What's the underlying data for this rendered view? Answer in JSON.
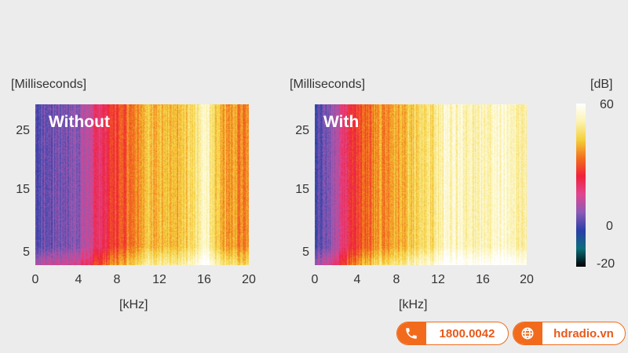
{
  "chart_data": [
    {
      "type": "heatmap",
      "title": "Without",
      "xlabel": "[kHz]",
      "ylabel": "[Milliseconds]",
      "xlim": [
        0,
        20
      ],
      "ylim": [
        3,
        29
      ],
      "x_ticks": [
        "0",
        "4",
        "8",
        "12",
        "16",
        "20"
      ],
      "y_ticks": [
        "5",
        "15",
        "25"
      ],
      "frequency_khz": [
        0,
        1,
        2,
        3,
        4,
        5,
        6,
        7,
        8,
        9,
        10,
        11,
        12,
        13,
        14,
        15,
        16,
        17,
        18,
        19,
        20
      ],
      "level_db_by_frequency": [
        2,
        4,
        5,
        6,
        8,
        12,
        20,
        26,
        30,
        35,
        40,
        42,
        40,
        38,
        42,
        48,
        55,
        44,
        38,
        36,
        34
      ]
    },
    {
      "type": "heatmap",
      "title": "With",
      "xlabel": "[kHz]",
      "ylabel": "[Milliseconds]",
      "xlim": [
        0,
        20
      ],
      "ylim": [
        3,
        29
      ],
      "x_ticks": [
        "0",
        "4",
        "8",
        "12",
        "16",
        "20"
      ],
      "y_ticks": [
        "5",
        "15",
        "25"
      ],
      "frequency_khz": [
        0,
        1,
        2,
        3,
        4,
        5,
        6,
        7,
        8,
        9,
        10,
        11,
        12,
        13,
        14,
        15,
        16,
        17,
        18,
        19,
        20
      ],
      "level_db_by_frequency": [
        2,
        4,
        10,
        22,
        28,
        32,
        36,
        38,
        40,
        42,
        44,
        46,
        52,
        54,
        53,
        50,
        52,
        54,
        55,
        52,
        50
      ]
    }
  ],
  "colorbar": {
    "label": "[dB]",
    "ticks": [
      "60",
      "0",
      "-20"
    ],
    "stops": [
      "#000000",
      "#0b6e7a",
      "#2a3fa8",
      "#8b5bb5",
      "#e0458f",
      "#f0213a",
      "#f2701d",
      "#f5d03a",
      "#fbf3b0",
      "#ffffff"
    ]
  },
  "contact": {
    "phone": "1800.0042",
    "website": "hdradio.vn",
    "accent": "#f26b1d"
  }
}
